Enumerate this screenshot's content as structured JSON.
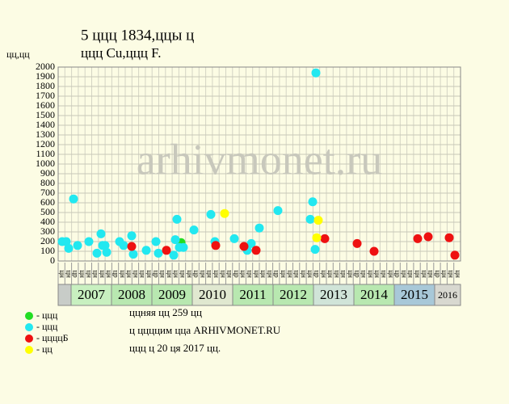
{
  "chart_data": {
    "type": "scatter",
    "title": "5 ццц 1834,ццы ц",
    "subtitle": "ццц Cu,ццц F.",
    "y_axis_label": "цц,цц",
    "watermark": "arhivmonet.ru",
    "xlim": [
      2006.68,
      2016.64
    ],
    "ylim": [
      0,
      2000
    ],
    "yticks": [
      0,
      100,
      200,
      300,
      400,
      500,
      600,
      700,
      800,
      900,
      1000,
      1100,
      1200,
      1300,
      1400,
      1500,
      1600,
      1700,
      1800,
      1900,
      2000
    ],
    "grid": true,
    "years": [
      2007,
      2008,
      2009,
      2010,
      2011,
      2012,
      2013,
      2014,
      2015,
      2016
    ],
    "year_colors": [
      "#c8f0c0",
      "#b8e8b0",
      "#b8e8b0",
      "#e0e8d0",
      "#b8e8b0",
      "#b8e8b0",
      "#d0e4d8",
      "#b8e8b0",
      "#a8c8d8",
      "#d8d8d0"
    ],
    "period_labels": [
      "цн",
      "цн",
      "цр",
      "цн",
      "цн",
      "цн",
      "цн",
      "цн",
      "цр",
      "цн",
      "цн",
      "цн",
      "цн",
      "цн",
      "цр",
      "цн",
      "цн",
      "цн",
      "цн",
      "цн",
      "цр",
      "цн",
      "цн",
      "цн",
      "цн",
      "цн",
      "цр",
      "цн",
      "цн",
      "цн",
      "цн",
      "цн",
      "цр",
      "цн",
      "цн",
      "цн",
      "цн",
      "цн",
      "цр",
      "цн",
      "цн",
      "цн",
      "цн",
      "цн",
      "цр",
      "цн",
      "цн",
      "цн",
      "цн",
      "цн",
      "цр",
      "цн",
      "цн",
      "цн",
      "цн",
      "цн",
      "цр",
      "цн",
      "цн",
      "цн"
    ],
    "series": [
      {
        "name": "- ццц",
        "color": "#22dd22",
        "x": [
          2009.72
        ],
        "values": [
          190
        ]
      },
      {
        "name": "- ццц",
        "color": "#22e8f0",
        "x": [
          2006.78,
          2006.88,
          2006.94,
          2007.06,
          2007.16,
          2007.44,
          2007.64,
          2007.74,
          2007.78,
          2007.84,
          2007.88,
          2008.2,
          2008.3,
          2008.5,
          2008.54,
          2008.86,
          2009.1,
          2009.16,
          2009.54,
          2009.58,
          2009.62,
          2009.68,
          2009.78,
          2010.04,
          2010.46,
          2010.56,
          2011.04,
          2011.36,
          2011.46,
          2011.66,
          2012.12,
          2012.92,
          2012.98,
          2013.06,
          2013.04
        ],
        "values": [
          200,
          200,
          130,
          640,
          160,
          200,
          80,
          280,
          160,
          160,
          90,
          200,
          160,
          260,
          70,
          110,
          200,
          80,
          60,
          220,
          430,
          140,
          140,
          320,
          480,
          200,
          230,
          110,
          180,
          340,
          520,
          430,
          610,
          1940,
          120
        ]
      },
      {
        "name": "- ццццБ",
        "color": "#ee1111",
        "x": [
          2008.5,
          2009.36,
          2010.58,
          2011.28,
          2011.58,
          2013.28,
          2014.08,
          2014.5,
          2015.58,
          2015.84,
          2016.36,
          2016.5
        ],
        "values": [
          150,
          110,
          160,
          150,
          110,
          230,
          180,
          100,
          230,
          250,
          240,
          60
        ]
      },
      {
        "name": "- цц",
        "color": "#ffff00",
        "x": [
          2010.8,
          2013.12,
          2013.08
        ],
        "values": [
          490,
          420,
          240
        ]
      }
    ],
    "notes": [
      "ццняя цц 259 цц",
      "ц ццццим цца ARHIVMONET.RU",
      "ццц ц 20 ця 2017 цц."
    ]
  }
}
